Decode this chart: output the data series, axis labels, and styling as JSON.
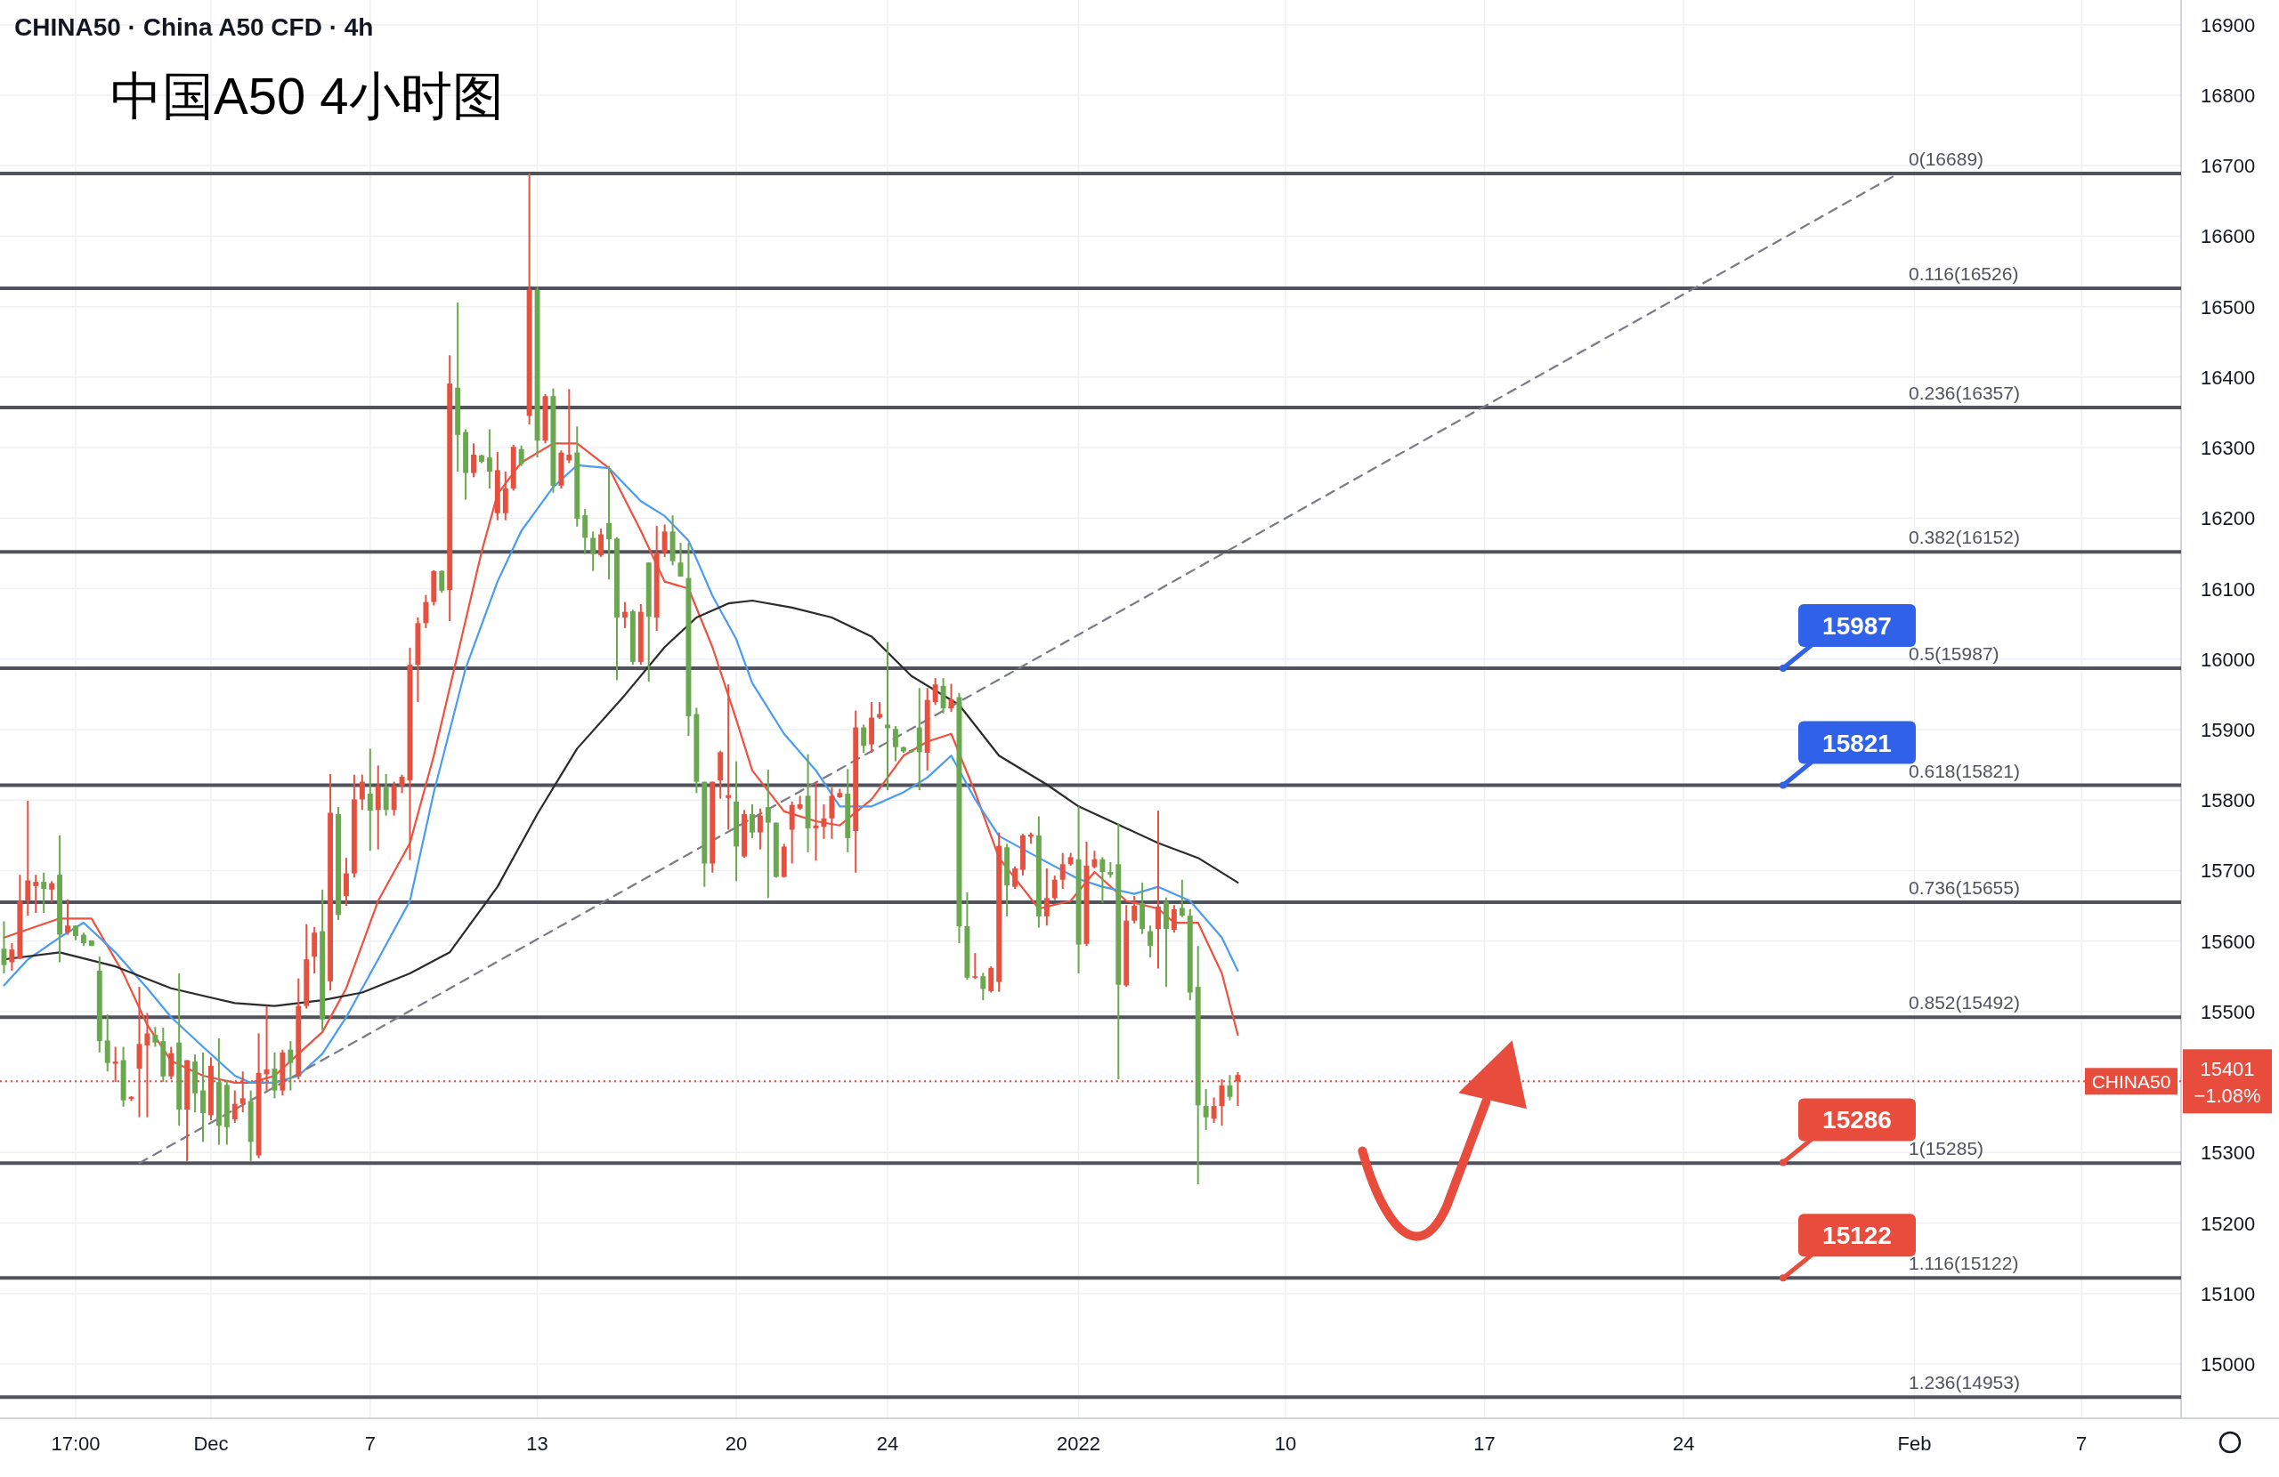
{
  "chart_data": {
    "type": "candlestick",
    "title": "CHINA50 · China A50 CFD · 4h",
    "subtitle": "中国A50 4小时图",
    "categories": [
      null,
      null,
      null,
      null,
      null,
      null,
      null,
      null,
      null,
      "17:00",
      null,
      null,
      null,
      null,
      null,
      null,
      null,
      null,
      null,
      null,
      null,
      null,
      null,
      null,
      null,
      null,
      "Dec",
      null,
      null,
      null,
      null,
      null,
      null,
      null,
      null,
      null,
      null,
      null,
      null,
      null,
      null,
      null,
      null,
      null,
      null,
      null,
      "7",
      null,
      null,
      null,
      null,
      null,
      null,
      null,
      null,
      null,
      null,
      null,
      null,
      null,
      null,
      null,
      null,
      null,
      null,
      null,
      null,
      "13",
      null,
      null,
      null,
      null,
      null,
      null,
      null,
      null,
      null,
      null,
      null,
      null,
      null,
      null,
      null,
      null,
      null,
      null,
      null,
      null,
      null,
      null,
      null,
      null,
      "20",
      null,
      null,
      null,
      null,
      null,
      null,
      null,
      null,
      null,
      null,
      null,
      null,
      null,
      null,
      null,
      null,
      null,
      null,
      "24",
      null,
      null,
      null,
      null,
      null,
      null,
      null,
      null,
      null,
      null,
      null,
      null,
      null,
      null,
      null,
      null,
      null,
      null,
      null,
      null,
      null,
      null,
      null,
      "2022",
      null,
      null,
      null,
      null,
      null,
      null,
      null,
      null,
      null,
      null,
      null,
      null,
      null,
      null,
      null,
      null,
      null,
      null,
      null,
      null,
      null,
      null,
      null,
      null,
      null,
      "10",
      null,
      null,
      null,
      null,
      null,
      null,
      null,
      null,
      null,
      null,
      null,
      null,
      null,
      null,
      null,
      null,
      null,
      null,
      null,
      null,
      null,
      null,
      null,
      null,
      "17",
      null,
      null,
      null,
      null,
      null,
      null,
      null,
      null,
      null,
      null,
      null,
      null,
      null,
      null,
      null,
      null,
      null,
      null,
      null,
      null,
      null,
      null,
      null,
      null,
      "24",
      null,
      null,
      null,
      null,
      null,
      null,
      null,
      null,
      null,
      null,
      null,
      null,
      null,
      null,
      null,
      null,
      null,
      null,
      null,
      null,
      null,
      null,
      null,
      null,
      null,
      null,
      null,
      null,
      "Feb",
      null,
      null,
      null,
      null,
      null,
      null,
      null,
      null,
      null,
      null,
      null,
      null,
      null,
      null,
      null,
      null,
      null,
      null,
      null,
      null,
      "7",
      null,
      null,
      null,
      null,
      null,
      null,
      null,
      null,
      null,
      null,
      null,
      null
    ],
    "ohlc": [
      [
        15566,
        15628,
        15554,
        15589
      ],
      [
        15588,
        15597,
        15558,
        15570
      ],
      [
        15657,
        15694,
        15574,
        15575
      ],
      [
        15686,
        15799,
        15636,
        15657
      ],
      [
        15684,
        15694,
        15640,
        15678
      ],
      [
        15674,
        15697,
        15640,
        15684
      ],
      [
        15682,
        15685,
        15655,
        15673
      ],
      [
        15609,
        15750,
        15570,
        15694
      ],
      [
        15622,
        15659,
        15609,
        15612
      ],
      [
        15607,
        15622,
        15601,
        15622
      ],
      [
        15597,
        15612,
        15593,
        15609
      ],
      [
        15593,
        15601,
        15593,
        15601
      ],
      [
        15458,
        15578,
        15442,
        15558
      ],
      [
        15427,
        15496,
        15415,
        15459
      ],
      [
        15429,
        15450,
        15400,
        15426
      ],
      [
        15374,
        15450,
        15365,
        15431
      ],
      [
        15379,
        15380,
        15373,
        15376
      ],
      [
        15454,
        15535,
        15350,
        15419
      ],
      [
        15469,
        15498,
        15350,
        15452
      ],
      [
        15456,
        15478,
        15450,
        15467
      ],
      [
        15408,
        15477,
        15400,
        15458
      ],
      [
        15441,
        15450,
        15404,
        15408
      ],
      [
        15361,
        15554,
        15338,
        15456
      ],
      [
        15431,
        15431,
        15288,
        15361
      ],
      [
        15384,
        15439,
        15357,
        15429
      ],
      [
        15356,
        15442,
        15315,
        15388
      ],
      [
        15423,
        15435,
        15346,
        15353
      ],
      [
        15338,
        15462,
        15311,
        15400
      ],
      [
        15336,
        15403,
        15311,
        15396
      ],
      [
        15369,
        15388,
        15342,
        15347
      ],
      [
        15377,
        15415,
        15357,
        15369
      ],
      [
        15315,
        15388,
        15288,
        15373
      ],
      [
        15413,
        15469,
        15292,
        15296
      ],
      [
        15418,
        15508,
        15388,
        15411
      ],
      [
        15388,
        15442,
        15377,
        15419
      ],
      [
        15442,
        15446,
        15381,
        15388
      ],
      [
        15427,
        15458,
        15388,
        15446
      ],
      [
        15508,
        15547,
        15404,
        15408
      ],
      [
        15574,
        15624,
        15504,
        15508
      ],
      [
        15612,
        15620,
        15554,
        15578
      ],
      [
        15489,
        15673,
        15473,
        15614
      ],
      [
        15782,
        15837,
        15530,
        15543
      ],
      [
        15637,
        15790,
        15630,
        15780
      ],
      [
        15696,
        15718,
        15650,
        15664
      ],
      [
        15801,
        15836,
        15690,
        15696
      ],
      [
        15826,
        15836,
        15786,
        15801
      ],
      [
        15785,
        15873,
        15728,
        15809
      ],
      [
        15820,
        15849,
        15730,
        15786
      ],
      [
        15786,
        15837,
        15778,
        15818
      ],
      [
        15820,
        15826,
        15778,
        15786
      ],
      [
        15833,
        15836,
        15810,
        15820
      ],
      [
        15992,
        16016,
        15715,
        15828
      ],
      [
        16051,
        16059,
        15939,
        15992
      ],
      [
        16081,
        16091,
        16044,
        16051
      ],
      [
        16125,
        16126,
        16076,
        16081
      ],
      [
        16097,
        16126,
        16094,
        16125
      ],
      [
        16391,
        16431,
        16054,
        16098
      ],
      [
        16318,
        16506,
        16266,
        16385
      ],
      [
        16264,
        16326,
        16226,
        16322
      ],
      [
        16290,
        16306,
        16258,
        16264
      ],
      [
        16280,
        16290,
        16278,
        16289
      ],
      [
        16266,
        16326,
        16242,
        16286
      ],
      [
        16268,
        16294,
        16197,
        16207
      ],
      [
        16242,
        16266,
        16197,
        16207
      ],
      [
        16301,
        16304,
        16239,
        16242
      ],
      [
        16277,
        16303,
        16274,
        16298
      ],
      [
        16524,
        16689,
        16333,
        16345
      ],
      [
        16310,
        16528,
        16286,
        16524
      ],
      [
        16373,
        16376,
        16306,
        16310
      ],
      [
        16246,
        16384,
        16236,
        16373
      ],
      [
        16293,
        16296,
        16242,
        16246
      ],
      [
        16290,
        16383,
        16278,
        16282
      ],
      [
        16199,
        16330,
        16188,
        16293
      ],
      [
        16172,
        16213,
        16149,
        16204
      ],
      [
        16149,
        16181,
        16125,
        16172
      ],
      [
        16177,
        16185,
        16145,
        16147
      ],
      [
        16170,
        16274,
        16113,
        16193
      ],
      [
        16059,
        16173,
        15970,
        16171
      ],
      [
        16067,
        16081,
        16044,
        16059
      ],
      [
        15996,
        16070,
        15992,
        16068
      ],
      [
        16067,
        16078,
        15992,
        15996
      ],
      [
        16060,
        16137,
        15968,
        16137
      ],
      [
        16151,
        16189,
        16040,
        16059
      ],
      [
        16181,
        16191,
        16145,
        16151
      ],
      [
        16139,
        16204,
        16133,
        16181
      ],
      [
        16117,
        16165,
        16117,
        16137
      ],
      [
        15919,
        16165,
        15891,
        16115
      ],
      [
        15826,
        15931,
        15810,
        15922
      ],
      [
        15710,
        15826,
        15677,
        15826
      ],
      [
        15826,
        15826,
        15697,
        15710
      ],
      [
        15868,
        15870,
        15802,
        15828
      ],
      [
        15807,
        15964,
        15758,
        15803
      ],
      [
        15734,
        15855,
        15685,
        15798
      ],
      [
        15780,
        15786,
        15718,
        15720
      ],
      [
        15754,
        15794,
        15746,
        15780
      ],
      [
        15778,
        15788,
        15730,
        15754
      ],
      [
        15768,
        15843,
        15661,
        15790
      ],
      [
        15691,
        15768,
        15690,
        15768
      ],
      [
        15734,
        15738,
        15690,
        15691
      ],
      [
        15793,
        15798,
        15710,
        15758
      ],
      [
        15794,
        15806,
        15786,
        15788
      ],
      [
        15760,
        15865,
        15726,
        15806
      ],
      [
        15764,
        15826,
        15714,
        15760
      ],
      [
        15774,
        15794,
        15745,
        15762
      ],
      [
        15806,
        15818,
        15745,
        15774
      ],
      [
        15810,
        15816,
        15803,
        15804
      ],
      [
        15746,
        15844,
        15726,
        15809
      ],
      [
        15903,
        15927,
        15697,
        15756
      ],
      [
        15877,
        15907,
        15867,
        15903
      ],
      [
        15917,
        15939,
        15867,
        15879
      ],
      [
        15922,
        15939,
        15915,
        15917
      ],
      [
        15902,
        16024,
        15814,
        15907
      ],
      [
        15875,
        15905,
        15855,
        15901
      ],
      [
        15869,
        15876,
        15867,
        15875
      ],
      [
        15868,
        15872,
        15867,
        15871
      ],
      [
        15868,
        15959,
        15814,
        15903
      ],
      [
        15942,
        15959,
        15842,
        15867
      ],
      [
        15964,
        15973,
        15935,
        15939
      ],
      [
        15930,
        15973,
        15923,
        15962
      ],
      [
        15943,
        15965,
        15925,
        15930
      ],
      [
        15621,
        15952,
        15597,
        15946
      ],
      [
        15548,
        15669,
        15545,
        15621
      ],
      [
        15550,
        15583,
        15546,
        15548
      ],
      [
        15532,
        15555,
        15516,
        15550
      ],
      [
        15562,
        15564,
        15527,
        15529
      ],
      [
        15735,
        15754,
        15528,
        15542
      ],
      [
        15679,
        15738,
        15635,
        15733
      ],
      [
        15703,
        15706,
        15674,
        15677
      ],
      [
        15750,
        15752,
        15693,
        15701
      ],
      [
        15751,
        15754,
        15738,
        15748
      ],
      [
        15635,
        15777,
        15619,
        15750
      ],
      [
        15661,
        15703,
        15622,
        15635
      ],
      [
        15687,
        15693,
        15658,
        15661
      ],
      [
        15709,
        15725,
        15674,
        15687
      ],
      [
        15719,
        15725,
        15707,
        15709
      ],
      [
        15595,
        15791,
        15554,
        15716
      ],
      [
        15707,
        15741,
        15593,
        15596
      ],
      [
        15716,
        15728,
        15703,
        15705
      ],
      [
        15698,
        15719,
        15654,
        15716
      ],
      [
        15694,
        15712,
        15690,
        15698
      ],
      [
        15538,
        15767,
        15404,
        15709
      ],
      [
        15629,
        15651,
        15535,
        15537
      ],
      [
        15650,
        15664,
        15625,
        15629
      ],
      [
        15617,
        15683,
        15610,
        15654
      ],
      [
        15593,
        15622,
        15577,
        15614
      ],
      [
        15649,
        15785,
        15561,
        15617
      ],
      [
        15617,
        15662,
        15535,
        15656
      ],
      [
        15645,
        15651,
        15612,
        15616
      ],
      [
        15636,
        15687,
        15634,
        15647
      ],
      [
        15527,
        15645,
        15516,
        15636
      ],
      [
        15367,
        15593,
        15255,
        15535
      ],
      [
        15350,
        15390,
        15332,
        15366
      ],
      [
        15366,
        15378,
        15342,
        15348
      ],
      [
        15395,
        15404,
        15338,
        15366
      ],
      [
        15379,
        15410,
        15374,
        15395
      ],
      [
        15410,
        15414,
        15366,
        15401
      ],
      null,
      null,
      null,
      null,
      null,
      null,
      null,
      null,
      null,
      null,
      null,
      null,
      null,
      null,
      null,
      null,
      null,
      null,
      null,
      null,
      null,
      null,
      null,
      null,
      null,
      null,
      null,
      null,
      null,
      null,
      null,
      null,
      null,
      null,
      null,
      null,
      null,
      null,
      null,
      null,
      null,
      null,
      null,
      null,
      null,
      null,
      null,
      null,
      null,
      null,
      null,
      null,
      null,
      null,
      null,
      null,
      null,
      null,
      null,
      null,
      null,
      null,
      null,
      null,
      null,
      null,
      null,
      null,
      null,
      null,
      null,
      null,
      null,
      null,
      null,
      null,
      null,
      null,
      null,
      null,
      null,
      null,
      null,
      null,
      null,
      null,
      null,
      null,
      null,
      null,
      null,
      null,
      null,
      null,
      null,
      null,
      null,
      null,
      null,
      null,
      null,
      null,
      null,
      null,
      null,
      null,
      null,
      null,
      null,
      null,
      null,
      null,
      null,
      null,
      null,
      null,
      null,
      null
    ],
    "series": [
      {
        "type": "line",
        "color": "#f0503f",
        "values": [
          15605,
          null,
          null,
          null,
          null,
          null,
          null,
          15632,
          null,
          null,
          null,
          15632,
          null,
          null,
          null,
          15554,
          null,
          null,
          15481,
          null,
          null,
          15430,
          null,
          null,
          null,
          15409,
          null,
          null,
          null,
          15399,
          null,
          15399,
          null,
          null,
          15409,
          null,
          null,
          15440,
          null,
          null,
          15471,
          null,
          null,
          15533,
          null,
          null,
          null,
          15657,
          null,
          null,
          null,
          15739,
          null,
          null,
          15863,
          null,
          null,
          16007,
          null,
          null,
          16152,
          null,
          16234,
          null,
          null,
          16279,
          null,
          null,
          null,
          16306,
          null,
          null,
          16306,
          null,
          null,
          null,
          16271,
          null,
          null,
          null,
          16182,
          null,
          null,
          16110,
          null,
          null,
          16100,
          null,
          null,
          16017,
          null,
          null,
          15914,
          null,
          15842,
          null,
          null,
          null,
          15784,
          null,
          null,
          null,
          15770,
          null,
          null,
          15764,
          null,
          null,
          null,
          15801,
          null,
          null,
          null,
          15863,
          null,
          null,
          15883,
          null,
          null,
          15894,
          null,
          null,
          15811,
          null,
          null,
          15718,
          null,
          null,
          null,
          null,
          15646,
          null,
          null,
          null,
          15657,
          null,
          null,
          15698,
          null,
          null,
          null,
          15657,
          null,
          null,
          null,
          15646,
          null,
          15626,
          null,
          null,
          15626,
          null,
          null,
          15554,
          null,
          15467,
          null,
          null,
          null,
          null,
          null,
          null,
          null,
          null,
          null,
          null,
          null,
          null,
          null,
          null,
          null,
          null,
          null,
          null,
          null,
          null,
          null,
          null,
          null,
          null,
          null,
          null,
          null,
          null,
          null,
          null,
          null,
          null,
          null,
          null,
          null,
          null,
          null,
          null,
          null,
          null,
          null,
          null,
          null,
          null,
          null,
          null,
          null,
          null,
          null,
          null,
          null,
          null,
          null,
          null,
          null,
          null,
          null,
          null,
          null,
          null,
          null,
          null,
          null,
          null,
          null,
          null,
          null,
          null,
          null,
          null,
          null,
          null,
          null,
          null,
          null,
          null,
          null,
          null,
          null,
          null,
          null,
          null,
          null,
          null,
          null,
          null,
          null,
          null,
          null,
          null,
          null,
          null,
          null,
          null,
          null,
          null,
          null,
          null,
          null,
          null,
          null,
          null,
          null,
          null,
          null,
          null,
          null,
          null,
          null,
          null,
          null,
          null,
          null,
          null,
          null,
          null,
          null,
          null
        ]
      },
      {
        "type": "line",
        "color": "#4a9cf2",
        "values": [
          15537,
          null,
          null,
          15574,
          null,
          null,
          null,
          15605,
          null,
          null,
          15626,
          null,
          null,
          null,
          15584,
          null,
          null,
          null,
          15533,
          null,
          null,
          15492,
          null,
          null,
          null,
          15450,
          null,
          null,
          null,
          15409,
          null,
          15399,
          null,
          null,
          15399,
          null,
          null,
          15409,
          null,
          null,
          15440,
          null,
          null,
          15492,
          null,
          null,
          null,
          15574,
          null,
          null,
          null,
          15657,
          null,
          null,
          15811,
          null,
          null,
          null,
          15987,
          null,
          null,
          null,
          16110,
          null,
          null,
          16182,
          null,
          null,
          null,
          16244,
          null,
          null,
          16275,
          null,
          null,
          null,
          16271,
          null,
          null,
          null,
          16224,
          null,
          null,
          16203,
          null,
          null,
          16168,
          null,
          null,
          16090,
          null,
          null,
          16028,
          null,
          15966,
          null,
          null,
          null,
          15894,
          null,
          null,
          null,
          15842,
          null,
          null,
          15791,
          null,
          null,
          null,
          15791,
          null,
          null,
          null,
          15811,
          null,
          null,
          15832,
          null,
          null,
          15863,
          null,
          null,
          15801,
          null,
          null,
          15749,
          null,
          null,
          null,
          null,
          15718,
          null,
          null,
          null,
          null,
          15688,
          null,
          null,
          15677,
          null,
          null,
          null,
          15667,
          null,
          null,
          15677,
          null,
          null,
          null,
          15657,
          null,
          null,
          null,
          15605,
          null,
          15558,
          null,
          null,
          null,
          null,
          null,
          null,
          null,
          null,
          null,
          null,
          null,
          null,
          null,
          null,
          null,
          null,
          null,
          null,
          null,
          null,
          null,
          null,
          null,
          null,
          null,
          null,
          null,
          null,
          null,
          null,
          null,
          null,
          null,
          null,
          null,
          null,
          null,
          null,
          null,
          null,
          null,
          null,
          null,
          null,
          null,
          null,
          null,
          null,
          null,
          null,
          null,
          null,
          null,
          null,
          null,
          null,
          null,
          null,
          null,
          null,
          null,
          null,
          null,
          null,
          null,
          null,
          null,
          null,
          null,
          null,
          null,
          null,
          null,
          null,
          null,
          null,
          null,
          null,
          null,
          null,
          null,
          null,
          null,
          null,
          null,
          null,
          null,
          null,
          null,
          null,
          null,
          null,
          null,
          null,
          null,
          null,
          null,
          null,
          null,
          null,
          null,
          null,
          null,
          null,
          null,
          null,
          null,
          null,
          null,
          null,
          null,
          null,
          null,
          null,
          null,
          null,
          null,
          null
        ]
      },
      {
        "type": "line",
        "color": "#2b2b2b",
        "values": [
          15574,
          null,
          null,
          null,
          null,
          null,
          null,
          15584,
          null,
          null,
          null,
          null,
          null,
          null,
          15564,
          null,
          null,
          null,
          null,
          null,
          null,
          15533,
          null,
          null,
          null,
          null,
          null,
          null,
          null,
          15512,
          null,
          null,
          null,
          null,
          15508,
          null,
          null,
          null,
          null,
          null,
          15516,
          null,
          null,
          null,
          null,
          15527,
          null,
          null,
          null,
          null,
          null,
          15554,
          null,
          null,
          null,
          null,
          15584,
          null,
          null,
          null,
          null,
          null,
          15677,
          null,
          null,
          null,
          null,
          15780,
          null,
          null,
          null,
          null,
          15873,
          null,
          null,
          null,
          null,
          null,
          15949,
          null,
          null,
          null,
          null,
          16017,
          null,
          null,
          null,
          16059,
          null,
          null,
          null,
          16079,
          null,
          null,
          16083,
          null,
          null,
          null,
          null,
          16073,
          null,
          null,
          null,
          null,
          16059,
          null,
          null,
          null,
          null,
          16032,
          null,
          null,
          null,
          null,
          15976,
          null,
          null,
          null,
          null,
          null,
          15935,
          null,
          null,
          null,
          null,
          15863,
          null,
          null,
          null,
          null,
          null,
          15822,
          null,
          null,
          null,
          15791,
          null,
          null,
          null,
          null,
          null,
          15760,
          null,
          null,
          null,
          15739,
          null,
          null,
          null,
          null,
          15718,
          null,
          null,
          null,
          null,
          15683,
          null,
          null,
          null,
          null,
          null,
          null,
          null,
          null,
          null,
          null,
          null,
          null,
          null,
          null,
          null,
          null,
          null,
          null,
          null,
          null,
          null,
          null,
          null,
          null,
          null,
          null,
          null,
          null,
          null,
          null,
          null,
          null,
          null,
          null,
          null,
          null,
          null,
          null,
          null,
          null,
          null,
          null,
          null,
          null,
          null,
          null,
          null,
          null,
          null,
          null,
          null,
          null,
          null,
          null,
          null,
          null,
          null,
          null,
          null,
          null,
          null,
          null,
          null,
          null,
          null,
          null,
          null,
          null,
          null,
          null,
          null,
          null,
          null,
          null,
          null,
          null,
          null,
          null,
          null,
          null,
          null,
          null,
          null,
          null,
          null,
          null,
          null,
          null,
          null,
          null,
          null,
          null,
          null,
          null,
          null,
          null,
          null,
          null,
          null,
          null,
          null,
          null,
          null,
          null,
          null,
          null,
          null,
          null,
          null,
          null,
          null,
          null,
          null,
          null,
          null,
          null,
          null,
          null
        ]
      },
      {
        "type": "line",
        "color": "#787b86",
        "line_style": "dashed",
        "values": [
          null,
          null,
          null,
          null,
          null,
          null,
          null,
          null,
          null,
          null,
          null,
          null,
          null,
          null,
          null,
          null,
          null,
          15285,
          null,
          null,
          null,
          null,
          null,
          null,
          null,
          null,
          null,
          null,
          null,
          null,
          null,
          null,
          null,
          null,
          null,
          null,
          null,
          null,
          null,
          null,
          null,
          null,
          null,
          null,
          null,
          null,
          null,
          null,
          null,
          null,
          null,
          null,
          null,
          null,
          null,
          null,
          null,
          null,
          null,
          null,
          null,
          null,
          null,
          null,
          null,
          null,
          null,
          null,
          null,
          null,
          null,
          null,
          null,
          null,
          null,
          null,
          null,
          null,
          null,
          null,
          null,
          null,
          null,
          null,
          null,
          null,
          null,
          null,
          null,
          null,
          null,
          null,
          null,
          null,
          null,
          null,
          null,
          null,
          null,
          null,
          null,
          null,
          null,
          null,
          null,
          null,
          null,
          null,
          null,
          null,
          null,
          null,
          null,
          null,
          null,
          null,
          null,
          null,
          null,
          null,
          null,
          null,
          null,
          null,
          null,
          null,
          null,
          null,
          null,
          null,
          null,
          null,
          null,
          null,
          null,
          null,
          null,
          null,
          null,
          null,
          null,
          null,
          null,
          null,
          null,
          null,
          null,
          null,
          null,
          null,
          null,
          null,
          null,
          null,
          null,
          null,
          null,
          null,
          null,
          null,
          null,
          null,
          null,
          null,
          null,
          null,
          null,
          null,
          null,
          null,
          null,
          null,
          null,
          null,
          null,
          null,
          null,
          null,
          null,
          null,
          null,
          null,
          null,
          null,
          null,
          null,
          null,
          null,
          null,
          null,
          null,
          null,
          null,
          null,
          null,
          null,
          null,
          null,
          null,
          null,
          null,
          null,
          null,
          null,
          null,
          null,
          null,
          null,
          null,
          null,
          null,
          null,
          null,
          null,
          null,
          null,
          null,
          null,
          null,
          null,
          null,
          null,
          null,
          null,
          null,
          null,
          null,
          null,
          null,
          null,
          null,
          null,
          null,
          null,
          null,
          null,
          null,
          null,
          16689,
          null,
          null,
          null,
          null,
          null,
          null,
          null,
          null,
          null,
          null,
          null,
          null,
          null,
          null,
          null,
          null,
          null,
          null,
          null,
          null,
          null,
          null,
          null,
          null,
          null,
          null,
          null,
          null,
          null,
          null,
          null,
          null,
          null,
          null,
          null
        ]
      }
    ],
    "ref_lines": [
      {
        "axis": "y",
        "value": 16689,
        "label": "0(16689)",
        "color": "#50535e",
        "line_style": "solid"
      },
      {
        "axis": "y",
        "value": 16526,
        "label": "0.116(16526)",
        "color": "#50535e",
        "line_style": "solid"
      },
      {
        "axis": "y",
        "value": 16357,
        "label": "0.236(16357)",
        "color": "#50535e",
        "line_style": "solid"
      },
      {
        "axis": "y",
        "value": 16152,
        "label": "0.382(16152)",
        "color": "#50535e",
        "line_style": "solid"
      },
      {
        "axis": "y",
        "value": 15987,
        "label": "0.5(15987)",
        "color": "#50535e",
        "line_style": "solid"
      },
      {
        "axis": "y",
        "value": 15821,
        "label": "0.618(15821)",
        "color": "#50535e",
        "line_style": "solid"
      },
      {
        "axis": "y",
        "value": 15655,
        "label": "0.736(15655)",
        "color": "#50535e",
        "line_style": "solid"
      },
      {
        "axis": "y",
        "value": 15492,
        "label": "0.852(15492)",
        "color": "#50535e",
        "line_style": "solid"
      },
      {
        "axis": "y",
        "value": 15285,
        "label": "1(15285)",
        "color": "#50535e",
        "line_style": "solid"
      },
      {
        "axis": "y",
        "value": 15122,
        "label": "1.116(15122)",
        "color": "#50535e",
        "line_style": "solid"
      },
      {
        "axis": "y",
        "value": 14953,
        "label": "1.236(14953)",
        "color": "#50535e",
        "line_style": "solid"
      },
      {
        "axis": "y",
        "value": 15401,
        "label": "CHINA50",
        "color": "#e84c3d",
        "line_style": "dotted"
      }
    ],
    "annotations": [
      {
        "text": "15987",
        "y": 15987
      },
      {
        "text": "15821",
        "y": 15821
      },
      {
        "text": "15286",
        "y": 15286
      },
      {
        "text": "15122",
        "y": 15122
      },
      "15401",
      "−1.08%"
    ],
    "ylim": [
      14923,
      16935
    ],
    "yticks": [
      15000,
      15100,
      15200,
      15300,
      {
        "value": 15400,
        "label": null
      },
      15500,
      15600,
      15700,
      15800,
      15900,
      16000,
      16100,
      16200,
      16300,
      16400,
      16500,
      16600,
      16700,
      16800,
      16900
    ],
    "grid": true
  }
}
